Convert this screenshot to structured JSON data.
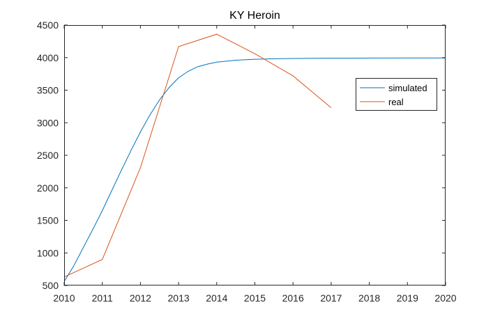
{
  "chart_data": {
    "type": "line",
    "title": "KY Heroin",
    "xlabel": "",
    "ylabel": "",
    "xlim": [
      2010,
      2020
    ],
    "ylim": [
      500,
      4500
    ],
    "xticks": [
      2010,
      2011,
      2012,
      2013,
      2014,
      2015,
      2016,
      2017,
      2018,
      2019,
      2020
    ],
    "yticks": [
      500,
      1000,
      1500,
      2000,
      2500,
      3000,
      3500,
      4000,
      4500
    ],
    "grid": false,
    "legend_position": "right",
    "series": [
      {
        "name": "simulated",
        "color": "#0072BD",
        "x": [
          2010,
          2010.25,
          2010.5,
          2010.75,
          2011,
          2011.25,
          2011.5,
          2011.75,
          2012,
          2012.25,
          2012.5,
          2012.75,
          2013,
          2013.25,
          2013.5,
          2013.75,
          2014,
          2014.5,
          2015,
          2015.5,
          2016,
          2016.5,
          2017,
          2018,
          2019,
          2020
        ],
        "y": [
          560,
          800,
          1080,
          1360,
          1650,
          1960,
          2270,
          2570,
          2860,
          3120,
          3350,
          3540,
          3690,
          3790,
          3860,
          3900,
          3930,
          3960,
          3975,
          3982,
          3987,
          3990,
          3992,
          3993,
          3994,
          3995
        ]
      },
      {
        "name": "real",
        "color": "#D95319",
        "x": [
          2010,
          2011,
          2012,
          2013,
          2014,
          2015,
          2016,
          2017
        ],
        "y": [
          630,
          900,
          2310,
          4170,
          4360,
          4060,
          3720,
          3230
        ]
      }
    ]
  }
}
